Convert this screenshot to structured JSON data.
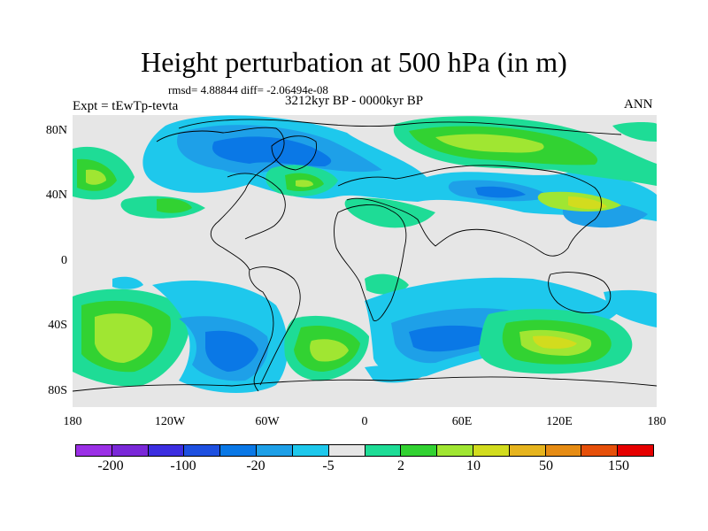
{
  "title": "Height perturbation at 500 hPa (in m)",
  "rmsd_line": "rmsd= 4.88844 diff= -2.06494e-08",
  "period": "3212kyr BP - 0000kyr BP",
  "experiment": "Expt = tEwTp-tevta",
  "season": "ANN",
  "map": {
    "projection": "cylindrical-equidistant",
    "lon_range": [
      -180,
      180
    ],
    "lat_range": [
      -90,
      90
    ],
    "y_tick_labels": [
      "80N",
      "40N",
      "0",
      "40S",
      "80S"
    ],
    "x_tick_labels": [
      "180",
      "120W",
      "60W",
      "0",
      "60E",
      "120E",
      "180"
    ]
  },
  "colorbar": {
    "colors": [
      "#9b30e6",
      "#7a28d8",
      "#3c2ee0",
      "#1e50e0",
      "#0a78e6",
      "#1ea0e8",
      "#1ec8ec",
      "#e6e6e6",
      "#1edc96",
      "#32d232",
      "#a0e632",
      "#d2dc1e",
      "#e6b41e",
      "#e68c14",
      "#e6500a",
      "#e60000"
    ],
    "labels": [
      "-200",
      "-100",
      "-20",
      "-5",
      "2",
      "10",
      "50",
      "150"
    ]
  },
  "field_colors": {
    "background": "#e6e6e6",
    "cyan": "#1ec8ec",
    "lightblue": "#1ea0e8",
    "blue": "#0a78e6",
    "deepblue": "#1e50e0",
    "teal": "#1edc96",
    "green": "#32d232",
    "lime": "#a0e632",
    "coast": "#000000"
  }
}
